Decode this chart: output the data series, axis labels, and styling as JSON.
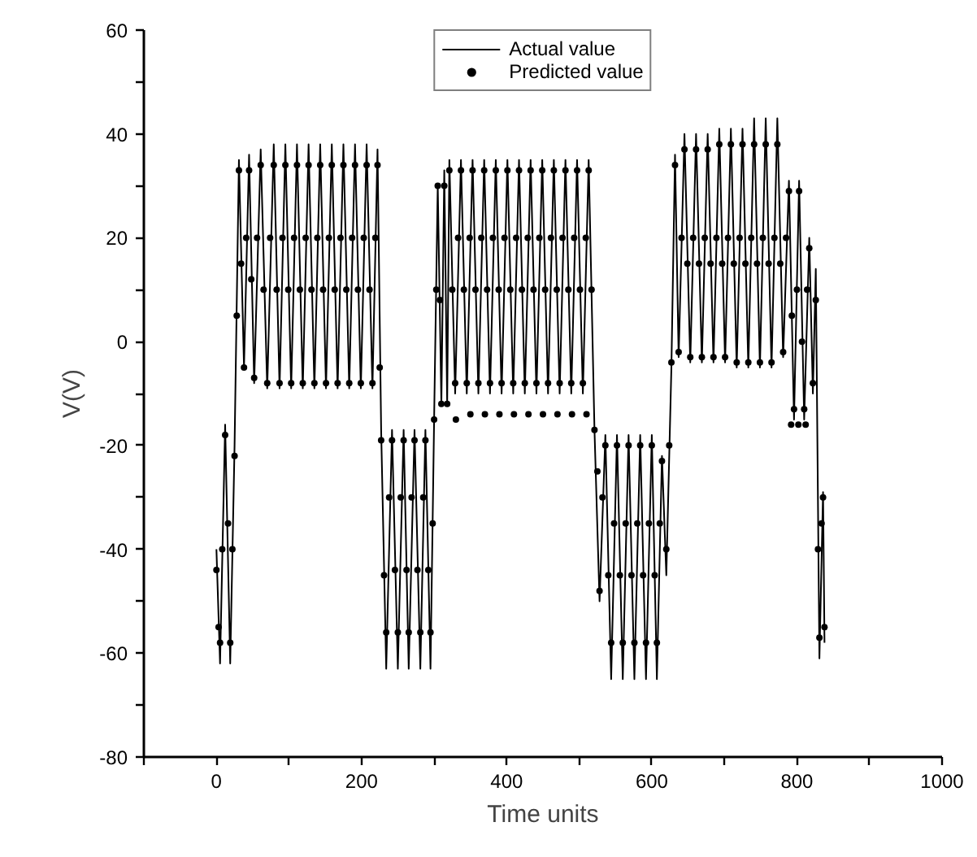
{
  "chart_data": {
    "type": "line",
    "xlabel": "Time units",
    "ylabel": "V(V)",
    "xlim": [
      -100,
      1000
    ],
    "ylim": [
      -80,
      60
    ],
    "xticks": [
      {
        "value": -100,
        "label": null
      },
      0,
      {
        "value": 100,
        "label": null
      },
      200,
      {
        "value": 300,
        "label": null
      },
      400,
      {
        "value": 500,
        "label": null
      },
      600,
      {
        "value": 700,
        "label": null
      },
      800,
      {
        "value": 900,
        "label": null
      },
      1000
    ],
    "yticks": [
      -80,
      {
        "value": -70,
        "label": null
      },
      -60,
      {
        "value": -50,
        "label": null
      },
      -40,
      {
        "value": -30,
        "label": null
      },
      -20,
      {
        "value": -10,
        "label": null
      },
      0,
      {
        "value": 10,
        "label": null
      },
      20,
      {
        "value": 30,
        "label": null
      },
      40,
      {
        "value": 50,
        "label": null
      },
      60
    ],
    "grid": false,
    "legend": "top",
    "line_style": "solid",
    "series": [
      {
        "name": "Actual value",
        "color": "#000000",
        "marker": "none",
        "x": [
          0,
          5,
          12,
          19,
          25,
          31,
          38,
          45,
          52,
          61,
          70,
          79,
          87,
          95,
          103,
          111,
          119,
          127,
          135,
          143,
          151,
          159,
          167,
          175,
          183,
          191,
          199,
          207,
          215,
          222,
          227,
          234,
          242,
          250,
          258,
          265,
          273,
          281,
          288,
          295,
          300,
          305,
          310,
          314,
          318,
          321,
          329,
          337,
          345,
          353,
          361,
          369,
          377,
          385,
          393,
          401,
          409,
          417,
          425,
          433,
          441,
          449,
          457,
          465,
          473,
          481,
          489,
          497,
          505,
          513,
          521,
          528,
          536,
          544,
          552,
          560,
          568,
          576,
          584,
          592,
          600,
          607,
          614,
          620,
          627,
          632,
          637,
          645,
          653,
          661,
          669,
          677,
          685,
          693,
          701,
          709,
          717,
          725,
          733,
          741,
          749,
          757,
          765,
          773,
          781,
          789,
          796,
          803,
          810,
          817,
          822,
          826,
          831,
          836,
          838
        ],
        "values": [
          -40,
          -62,
          -16,
          -62,
          -20,
          35,
          -5,
          36,
          -8,
          37,
          -9,
          38,
          -9,
          38,
          -9,
          38,
          -9,
          38,
          -9,
          38,
          -9,
          38,
          -9,
          38,
          -9,
          38,
          -9,
          38,
          -9,
          37,
          -17,
          -63,
          -17,
          -63,
          -17,
          -63,
          -17,
          -63,
          -17,
          -63,
          -15,
          30,
          -12,
          33,
          -12,
          35,
          -10,
          35,
          -10,
          35,
          -10,
          35,
          -10,
          35,
          -10,
          35,
          -10,
          35,
          -10,
          35,
          -10,
          35,
          -10,
          35,
          -10,
          35,
          -10,
          35,
          -10,
          35,
          -17,
          -50,
          -18,
          -65,
          -18,
          -65,
          -18,
          -65,
          -18,
          -65,
          -18,
          -65,
          -22,
          -45,
          -5,
          36,
          -3,
          40,
          -4,
          40,
          -4,
          40,
          -4,
          41,
          -4,
          41,
          -5,
          41,
          -5,
          43,
          -5,
          43,
          -5,
          43,
          -3,
          31,
          -15,
          31,
          -15,
          20,
          -10,
          14,
          -61,
          -29,
          -58
        ]
      },
      {
        "name": "Predicted value",
        "type": "scatter",
        "color": "#000000",
        "marker": "circle",
        "x": [
          0,
          3,
          5,
          8,
          12,
          16,
          19,
          22,
          25,
          28,
          31,
          34,
          38,
          41,
          45,
          48,
          52,
          56,
          61,
          65,
          70,
          74,
          79,
          83,
          87,
          91,
          95,
          99,
          103,
          107,
          111,
          115,
          119,
          123,
          127,
          131,
          135,
          139,
          143,
          147,
          151,
          155,
          159,
          163,
          167,
          171,
          175,
          179,
          183,
          187,
          191,
          195,
          199,
          203,
          207,
          211,
          215,
          219,
          222,
          225,
          227,
          231,
          234,
          238,
          242,
          246,
          250,
          254,
          258,
          262,
          265,
          269,
          273,
          277,
          281,
          285,
          288,
          292,
          295,
          298,
          300,
          303,
          305,
          308,
          310,
          314,
          318,
          321,
          325,
          329,
          333,
          337,
          341,
          345,
          349,
          353,
          357,
          361,
          365,
          369,
          373,
          377,
          381,
          385,
          389,
          393,
          397,
          401,
          405,
          409,
          413,
          417,
          421,
          425,
          429,
          433,
          437,
          441,
          445,
          449,
          453,
          457,
          461,
          465,
          469,
          473,
          477,
          481,
          485,
          489,
          493,
          497,
          501,
          505,
          509,
          513,
          517,
          330,
          350,
          370,
          390,
          410,
          430,
          450,
          470,
          490,
          510,
          521,
          525,
          528,
          532,
          536,
          540,
          544,
          548,
          552,
          556,
          560,
          564,
          568,
          572,
          576,
          580,
          584,
          588,
          592,
          596,
          600,
          604,
          607,
          611,
          614,
          620,
          624,
          627,
          632,
          637,
          641,
          645,
          649,
          653,
          657,
          661,
          665,
          669,
          673,
          677,
          681,
          685,
          689,
          693,
          697,
          701,
          705,
          709,
          713,
          717,
          721,
          725,
          729,
          733,
          737,
          741,
          745,
          749,
          753,
          757,
          761,
          765,
          769,
          773,
          777,
          781,
          785,
          789,
          793,
          796,
          800,
          803,
          807,
          810,
          814,
          817,
          822,
          826,
          829,
          831,
          834,
          836,
          838,
          792,
          802,
          812
        ],
        "values": [
          -44,
          -55,
          -58,
          -40,
          -18,
          -35,
          -58,
          -40,
          -22,
          5,
          33,
          15,
          -5,
          20,
          33,
          12,
          -7,
          20,
          34,
          10,
          -8,
          20,
          34,
          10,
          -8,
          20,
          34,
          10,
          -8,
          20,
          34,
          10,
          -8,
          20,
          34,
          10,
          -8,
          20,
          34,
          10,
          -8,
          20,
          34,
          10,
          -8,
          20,
          34,
          10,
          -8,
          20,
          34,
          10,
          -8,
          20,
          34,
          10,
          -8,
          20,
          34,
          -5,
          -19,
          -45,
          -56,
          -30,
          -19,
          -44,
          -56,
          -30,
          -19,
          -44,
          -56,
          -30,
          -19,
          -44,
          -56,
          -30,
          -19,
          -44,
          -56,
          -35,
          -15,
          10,
          30,
          8,
          -12,
          30,
          -12,
          33,
          10,
          -8,
          20,
          33,
          10,
          -8,
          20,
          33,
          10,
          -8,
          20,
          33,
          10,
          -8,
          20,
          33,
          10,
          -8,
          20,
          33,
          10,
          -8,
          20,
          33,
          10,
          -8,
          20,
          33,
          10,
          -8,
          20,
          33,
          10,
          -8,
          20,
          33,
          10,
          -8,
          20,
          33,
          10,
          -8,
          20,
          33,
          10,
          -8,
          20,
          33,
          10,
          -15,
          -14,
          -14,
          -14,
          -14,
          -14,
          -14,
          -14,
          -14,
          -14,
          -17,
          -25,
          -48,
          -30,
          -20,
          -45,
          -58,
          -35,
          -20,
          -45,
          -58,
          -35,
          -20,
          -45,
          -58,
          -35,
          -20,
          -45,
          -58,
          -35,
          -20,
          -45,
          -58,
          -35,
          -23,
          -40,
          -20,
          -4,
          34,
          -2,
          20,
          37,
          15,
          -3,
          20,
          37,
          15,
          -3,
          20,
          37,
          15,
          -3,
          20,
          38,
          15,
          -3,
          20,
          38,
          15,
          -4,
          20,
          38,
          15,
          -4,
          20,
          38,
          15,
          -4,
          20,
          38,
          15,
          -4,
          20,
          38,
          15,
          -2,
          20,
          29,
          5,
          -13,
          10,
          29,
          0,
          -13,
          10,
          18,
          -8,
          8,
          -40,
          -57,
          -35,
          -30,
          -55,
          -16,
          -16,
          -16
        ]
      }
    ]
  }
}
